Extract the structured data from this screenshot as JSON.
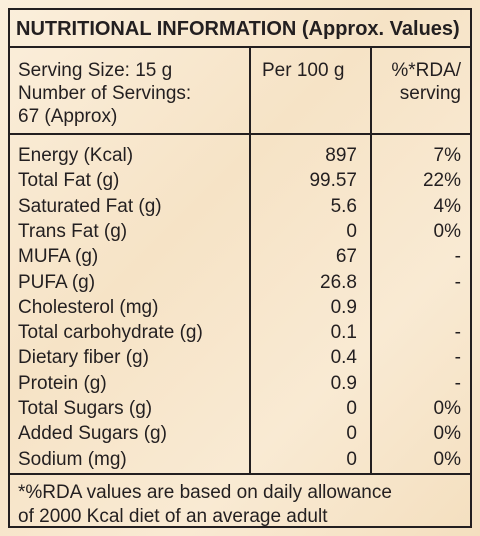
{
  "title": "NUTRITIONAL INFORMATION (Approx. Values)",
  "header": {
    "serving_info": [
      "Serving Size: 15 g",
      "Number of Servings:",
      "67 (Approx)"
    ],
    "per_100g": "Per 100 g",
    "rda": [
      "%*RDA/",
      "serving"
    ]
  },
  "table": {
    "rows": [
      [
        "Energy (Kcal)",
        "897",
        "7%"
      ],
      [
        "Total Fat (g)",
        "99.57",
        "22%"
      ],
      [
        "Saturated Fat (g)",
        "5.6",
        "4%"
      ],
      [
        "Trans Fat (g)",
        "0",
        "0%"
      ],
      [
        "MUFA (g)",
        "67",
        "-"
      ],
      [
        "PUFA (g)",
        "26.8",
        "-"
      ],
      [
        "Cholesterol (mg)",
        "0.9",
        null
      ],
      [
        "Total carbohydrate (g)",
        "0.1",
        "-"
      ],
      [
        "Dietary fiber (g)",
        "0.4",
        "-"
      ],
      [
        "Protein (g)",
        "0.9",
        "-"
      ],
      [
        "Total Sugars (g)",
        "0",
        "0%"
      ],
      [
        "Added Sugars (g)",
        "0",
        "0%"
      ],
      [
        "Sodium (mg)",
        "0",
        "0%"
      ]
    ]
  },
  "footnote": [
    "*%RDA values are based on daily allowance",
    "of 2000 Kcal diet of an average adult"
  ]
}
